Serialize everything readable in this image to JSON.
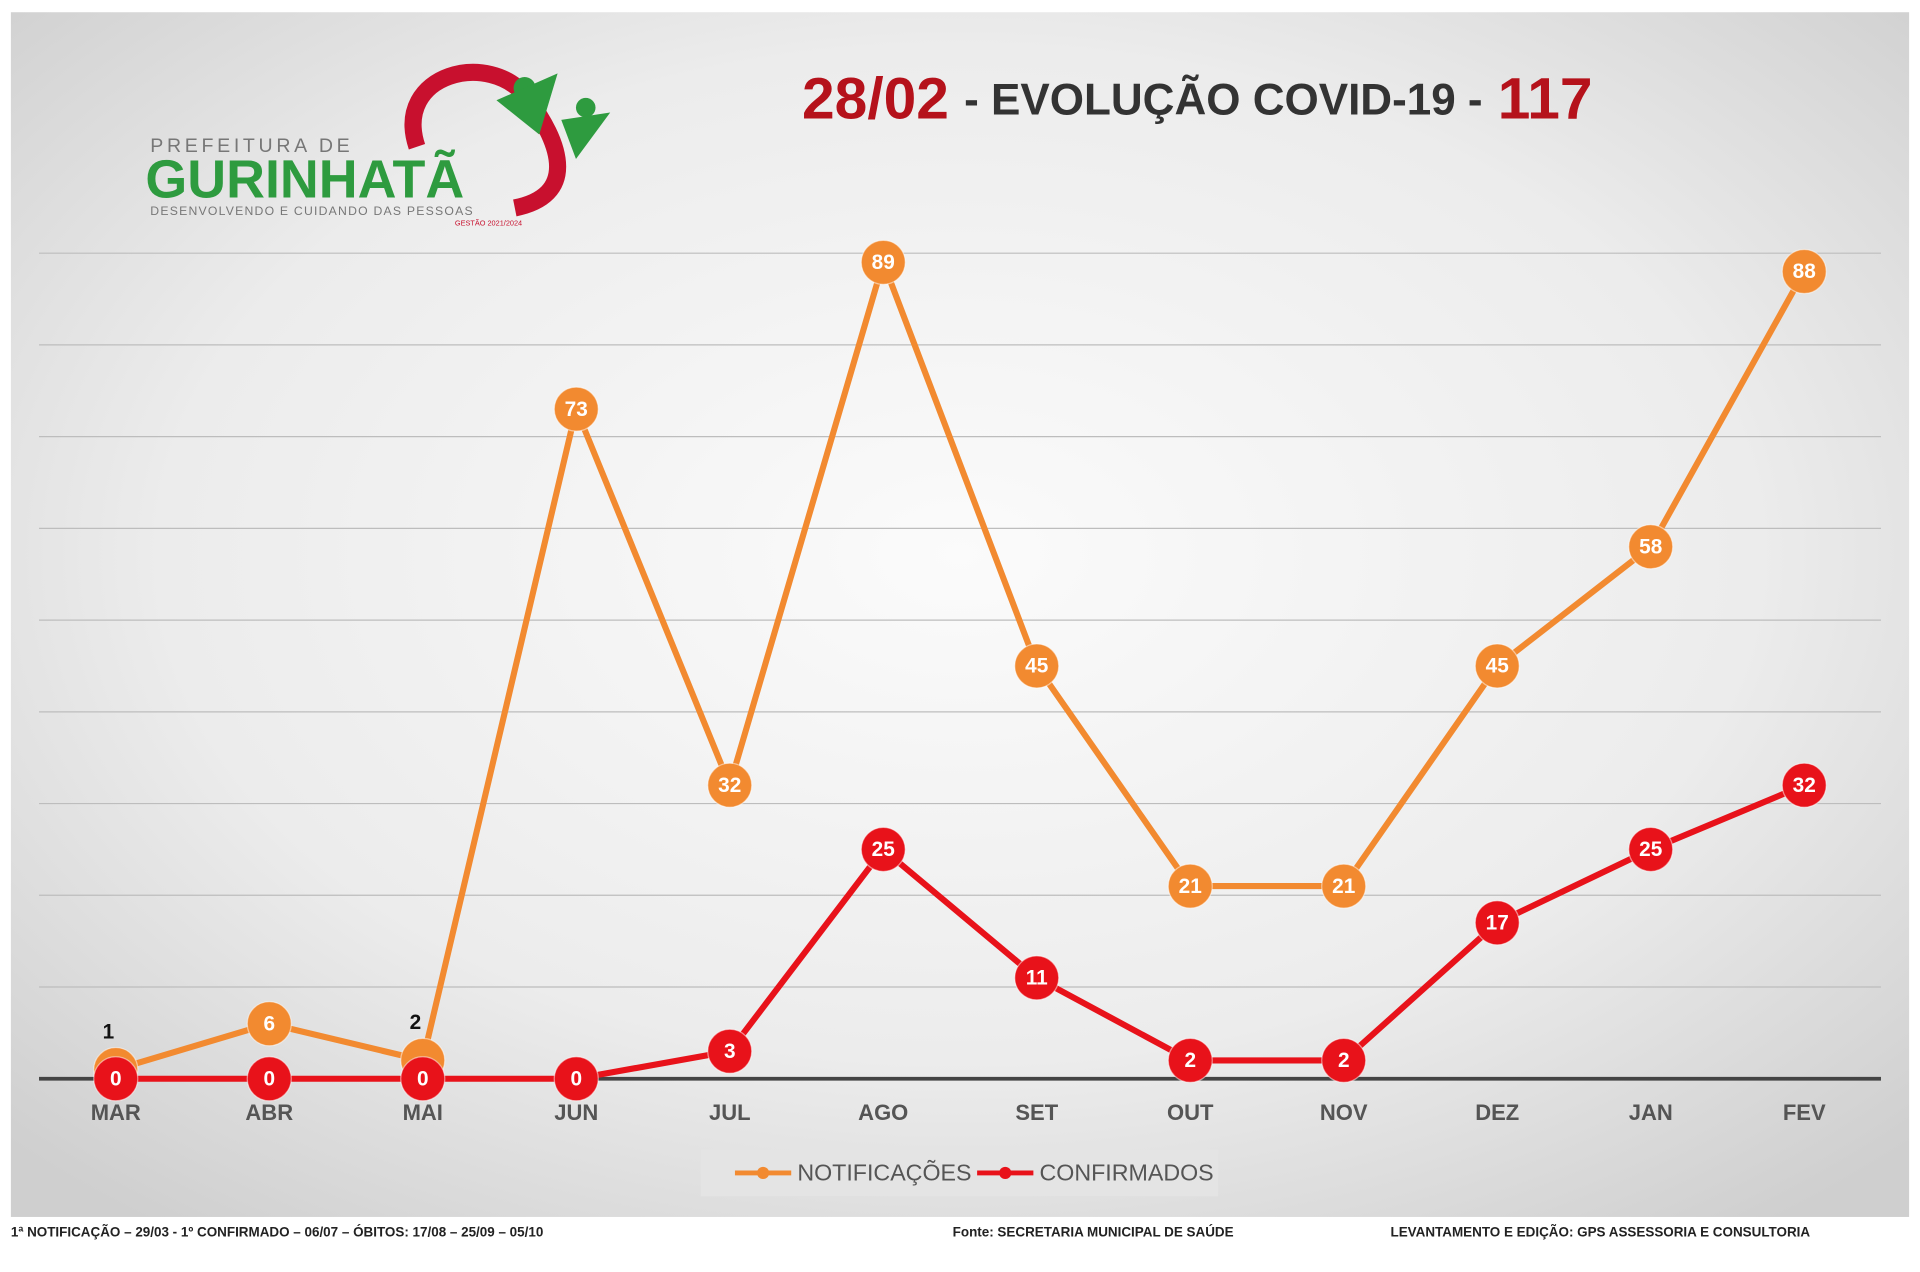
{
  "logo": {
    "top": "PREFEITURA DE",
    "name": "GURINHATÃ",
    "slogan": "DESENVOLVENDO E CUIDANDO DAS PESSOAS",
    "term": "GESTÃO 2021/2024"
  },
  "chart_data": {
    "type": "line",
    "title": {
      "date": "28/02",
      "text": "- EVOLUÇÃO COVID-19 -",
      "total": "117"
    },
    "categories": [
      "MAR",
      "ABR",
      "MAI",
      "JUN",
      "JUL",
      "AGO",
      "SET",
      "OUT",
      "NOV",
      "DEZ",
      "JAN",
      "FEV"
    ],
    "series": [
      {
        "name": "NOTIFICAÇÕES",
        "color": "#f28a30",
        "values": [
          1,
          6,
          2,
          73,
          32,
          89,
          45,
          21,
          21,
          45,
          58,
          88
        ]
      },
      {
        "name": "CONFIRMADOS",
        "color": "#e8121a",
        "values": [
          0,
          0,
          0,
          0,
          3,
          25,
          11,
          2,
          2,
          17,
          25,
          32
        ]
      }
    ],
    "ylim": [
      0,
      90
    ],
    "yticks": [
      0,
      10,
      20,
      30,
      40,
      50,
      60,
      70,
      80,
      90
    ],
    "grid": true,
    "legend": "bottom"
  },
  "footer": {
    "left": "1ª NOTIFICAÇÃO – 29/03 - 1º CONFIRMADO – 06/07 – ÓBITOS: 17/08 – 25/09 – 05/10",
    "center": "Fonte: SECRETARIA MUNICIPAL DE SAÚDE",
    "right": "LEVANTAMENTO E EDIÇÃO: GPS ASSESSORIA E CONSULTORIA"
  }
}
